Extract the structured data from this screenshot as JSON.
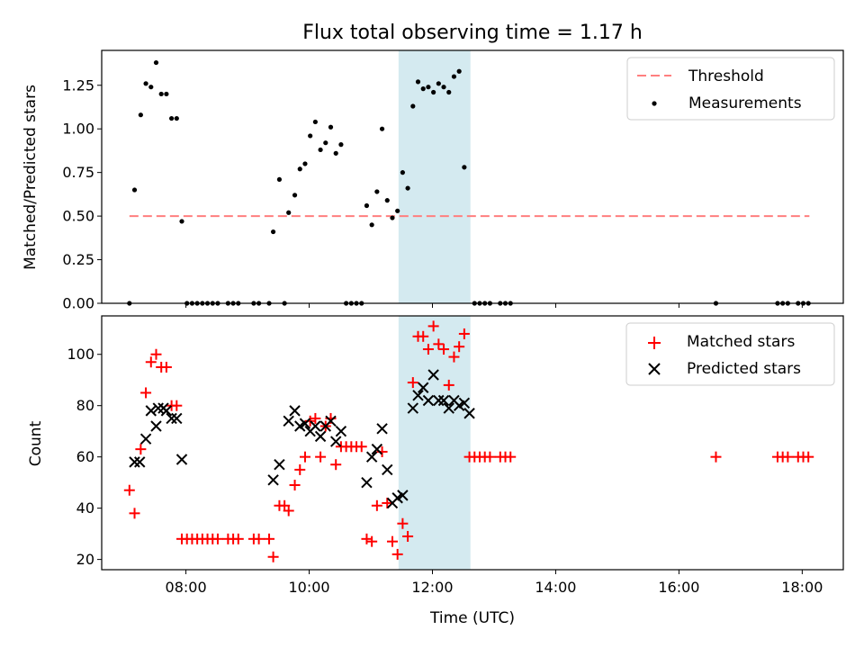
{
  "chart_data": [
    {
      "type": "scatter",
      "title": "Flux total observing time = 1.17 h",
      "xlabel": "",
      "ylabel": "Matched/Predicted stars",
      "xlim": [
        "06:38",
        "18:40"
      ],
      "ylim": [
        0,
        1.45
      ],
      "yticks": [
        "0.00",
        "0.25",
        "0.50",
        "0.75",
        "1.00",
        "1.25"
      ],
      "highlight_span": [
        "11:27",
        "12:37"
      ],
      "highlight_color": "#d4eaf0",
      "legend_position": "top-right",
      "threshold": {
        "name": "Threshold",
        "value": 0.5,
        "x": [
          "07:05",
          "18:07"
        ],
        "color": "#ff7f7f"
      },
      "series": [
        {
          "name": "Measurements",
          "color": "#000000",
          "points": [
            [
              "07:05",
              0
            ],
            [
              "07:10",
              0.65
            ],
            [
              "07:16",
              1.08
            ],
            [
              "07:21",
              1.26
            ],
            [
              "07:26",
              1.24
            ],
            [
              "07:31",
              1.38
            ],
            [
              "07:36",
              1.2
            ],
            [
              "07:41",
              1.2
            ],
            [
              "07:46",
              1.06
            ],
            [
              "07:51",
              1.06
            ],
            [
              "07:56",
              0.47
            ],
            [
              "08:01",
              0
            ],
            [
              "08:06",
              0
            ],
            [
              "08:11",
              0
            ],
            [
              "08:16",
              0
            ],
            [
              "08:21",
              0
            ],
            [
              "08:26",
              0
            ],
            [
              "08:31",
              0
            ],
            [
              "08:41",
              0
            ],
            [
              "08:46",
              0
            ],
            [
              "08:51",
              0
            ],
            [
              "09:06",
              0
            ],
            [
              "09:11",
              0
            ],
            [
              "09:21",
              0
            ],
            [
              "09:25",
              0.41
            ],
            [
              "09:31",
              0.71
            ],
            [
              "09:36",
              0
            ],
            [
              "09:40",
              0.52
            ],
            [
              "09:46",
              0.62
            ],
            [
              "09:51",
              0.77
            ],
            [
              "09:56",
              0.8
            ],
            [
              "10:01",
              0.96
            ],
            [
              "10:06",
              1.04
            ],
            [
              "10:11",
              0.88
            ],
            [
              "10:16",
              0.92
            ],
            [
              "10:21",
              1.01
            ],
            [
              "10:26",
              0.86
            ],
            [
              "10:31",
              0.91
            ],
            [
              "10:36",
              0
            ],
            [
              "10:41",
              0
            ],
            [
              "10:46",
              0
            ],
            [
              "10:51",
              0
            ],
            [
              "10:56",
              0.56
            ],
            [
              "11:01",
              0.45
            ],
            [
              "11:06",
              0.64
            ],
            [
              "11:11",
              1.0
            ],
            [
              "11:16",
              0.59
            ],
            [
              "11:21",
              0.49
            ],
            [
              "11:26",
              0.53
            ],
            [
              "11:31",
              0.75
            ],
            [
              "11:36",
              0.66
            ],
            [
              "11:41",
              1.13
            ],
            [
              "11:46",
              1.27
            ],
            [
              "11:51",
              1.23
            ],
            [
              "11:56",
              1.24
            ],
            [
              "12:01",
              1.21
            ],
            [
              "12:06",
              1.26
            ],
            [
              "12:11",
              1.24
            ],
            [
              "12:16",
              1.21
            ],
            [
              "12:21",
              1.3
            ],
            [
              "12:26",
              1.33
            ],
            [
              "12:31",
              0.78
            ],
            [
              "12:41",
              0
            ],
            [
              "12:46",
              0
            ],
            [
              "12:51",
              0
            ],
            [
              "12:56",
              0
            ],
            [
              "13:06",
              0
            ],
            [
              "13:11",
              0
            ],
            [
              "13:16",
              0
            ],
            [
              "16:36",
              0
            ],
            [
              "17:36",
              0
            ],
            [
              "17:41",
              0
            ],
            [
              "17:46",
              0
            ],
            [
              "17:56",
              0
            ],
            [
              "18:01",
              0
            ],
            [
              "18:06",
              0
            ]
          ]
        }
      ]
    },
    {
      "type": "scatter",
      "title": "",
      "xlabel": "Time (UTC)",
      "ylabel": "Count",
      "xlim": [
        "06:38",
        "18:40"
      ],
      "ylim": [
        16,
        115
      ],
      "xticks": [
        "08:00",
        "10:00",
        "12:00",
        "14:00",
        "16:00",
        "18:00"
      ],
      "yticks": [
        "20",
        "40",
        "60",
        "80",
        "100"
      ],
      "highlight_span": [
        "11:27",
        "12:37"
      ],
      "highlight_color": "#d4eaf0",
      "legend_position": "top-right",
      "series": [
        {
          "name": "Matched stars",
          "marker": "plus",
          "color": "#ff0000",
          "points": [
            [
              "07:05",
              47
            ],
            [
              "07:10",
              38
            ],
            [
              "07:16",
              63
            ],
            [
              "07:21",
              85
            ],
            [
              "07:26",
              97
            ],
            [
              "07:31",
              100
            ],
            [
              "07:36",
              95
            ],
            [
              "07:41",
              95
            ],
            [
              "07:46",
              80
            ],
            [
              "07:51",
              80
            ],
            [
              "07:56",
              28
            ],
            [
              "08:01",
              28
            ],
            [
              "08:06",
              28
            ],
            [
              "08:11",
              28
            ],
            [
              "08:16",
              28
            ],
            [
              "08:21",
              28
            ],
            [
              "08:26",
              28
            ],
            [
              "08:31",
              28
            ],
            [
              "08:41",
              28
            ],
            [
              "08:46",
              28
            ],
            [
              "08:51",
              28
            ],
            [
              "09:06",
              28
            ],
            [
              "09:11",
              28
            ],
            [
              "09:21",
              28
            ],
            [
              "09:25",
              21
            ],
            [
              "09:31",
              41
            ],
            [
              "09:36",
              41
            ],
            [
              "09:40",
              39
            ],
            [
              "09:46",
              49
            ],
            [
              "09:51",
              55
            ],
            [
              "09:56",
              60
            ],
            [
              "10:01",
              74
            ],
            [
              "10:06",
              75
            ],
            [
              "10:11",
              60
            ],
            [
              "10:16",
              72
            ],
            [
              "10:21",
              75
            ],
            [
              "10:26",
              57
            ],
            [
              "10:31",
              64
            ],
            [
              "10:36",
              64
            ],
            [
              "10:41",
              64
            ],
            [
              "10:46",
              64
            ],
            [
              "10:51",
              64
            ],
            [
              "10:56",
              28
            ],
            [
              "11:01",
              27
            ],
            [
              "11:06",
              41
            ],
            [
              "11:11",
              62
            ],
            [
              "11:16",
              42
            ],
            [
              "11:21",
              27
            ],
            [
              "11:26",
              22
            ],
            [
              "11:31",
              34
            ],
            [
              "11:36",
              29
            ],
            [
              "11:41",
              89
            ],
            [
              "11:46",
              107
            ],
            [
              "11:51",
              107
            ],
            [
              "11:56",
              102
            ],
            [
              "12:01",
              111
            ],
            [
              "12:06",
              104
            ],
            [
              "12:11",
              102
            ],
            [
              "12:16",
              88
            ],
            [
              "12:21",
              99
            ],
            [
              "12:26",
              103
            ],
            [
              "12:31",
              108
            ],
            [
              "12:36",
              60
            ],
            [
              "12:41",
              60
            ],
            [
              "12:46",
              60
            ],
            [
              "12:51",
              60
            ],
            [
              "12:56",
              60
            ],
            [
              "13:06",
              60
            ],
            [
              "13:11",
              60
            ],
            [
              "13:16",
              60
            ],
            [
              "16:36",
              60
            ],
            [
              "17:36",
              60
            ],
            [
              "17:41",
              60
            ],
            [
              "17:46",
              60
            ],
            [
              "17:56",
              60
            ],
            [
              "18:01",
              60
            ],
            [
              "18:06",
              60
            ]
          ]
        },
        {
          "name": "Predicted stars",
          "marker": "x",
          "color": "#000000",
          "points": [
            [
              "07:10",
              58
            ],
            [
              "07:15",
              58
            ],
            [
              "07:21",
              67
            ],
            [
              "07:26",
              78
            ],
            [
              "07:31",
              72
            ],
            [
              "07:33",
              79
            ],
            [
              "07:38",
              79
            ],
            [
              "07:41",
              78
            ],
            [
              "07:46",
              75
            ],
            [
              "07:51",
              75
            ],
            [
              "07:56",
              59
            ],
            [
              "09:25",
              51
            ],
            [
              "09:31",
              57
            ],
            [
              "09:40",
              74
            ],
            [
              "09:46",
              78
            ],
            [
              "09:51",
              72
            ],
            [
              "09:56",
              73
            ],
            [
              "10:01",
              70
            ],
            [
              "10:06",
              72
            ],
            [
              "10:11",
              68
            ],
            [
              "10:16",
              72
            ],
            [
              "10:21",
              74
            ],
            [
              "10:26",
              66
            ],
            [
              "10:31",
              70
            ],
            [
              "10:56",
              50
            ],
            [
              "11:01",
              60
            ],
            [
              "11:06",
              63
            ],
            [
              "11:11",
              71
            ],
            [
              "11:16",
              55
            ],
            [
              "11:21",
              42
            ],
            [
              "11:26",
              44
            ],
            [
              "11:31",
              45
            ],
            [
              "11:41",
              79
            ],
            [
              "11:46",
              84
            ],
            [
              "11:51",
              87
            ],
            [
              "11:56",
              82
            ],
            [
              "12:01",
              92
            ],
            [
              "12:06",
              82
            ],
            [
              "12:11",
              82
            ],
            [
              "12:16",
              79
            ],
            [
              "12:21",
              82
            ],
            [
              "12:26",
              80
            ],
            [
              "12:31",
              81
            ],
            [
              "12:36",
              77
            ]
          ]
        }
      ]
    }
  ]
}
